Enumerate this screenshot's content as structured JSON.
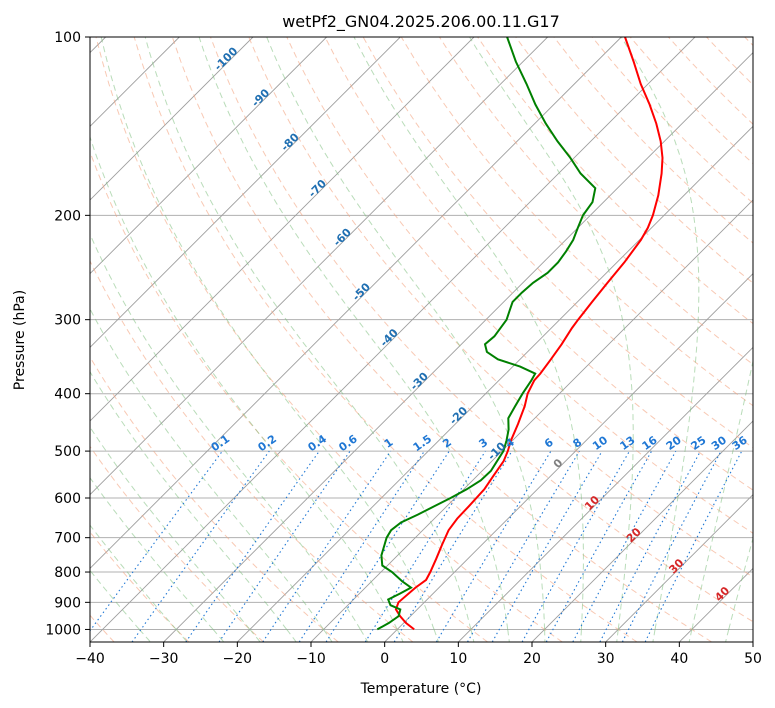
{
  "chart_data": {
    "type": "skew-t",
    "title": "wetPf2_GN04.2025.206.00.11.G17",
    "xlabel": "Temperature (°C)",
    "ylabel": "Pressure (hPa)",
    "xlim": [
      -40,
      50
    ],
    "ylim": [
      1050,
      100
    ],
    "x_ticks": [
      -40,
      -30,
      -20,
      -10,
      0,
      10,
      20,
      30,
      40,
      50
    ],
    "y_ticks": [
      100,
      200,
      300,
      400,
      500,
      600,
      700,
      800,
      900,
      1000
    ],
    "grid": true,
    "colors": {
      "temperature": "#ff0000",
      "dewpoint": "#008000",
      "isotherm": "#9e9e9e",
      "dry_adiabat": "#f4a582",
      "moist_adiabat": "#7fbf7f",
      "mixing_ratio": "#1f77d4",
      "isotherm_label": "#1f6fb2",
      "warm_label": "#d62728",
      "zero_label": "#808080",
      "grid": "#b0b0b0"
    },
    "series": [
      {
        "name": "temperature",
        "points": [
          [
            1000,
            2.3
          ],
          [
            975,
            0.3
          ],
          [
            950,
            -1.4
          ],
          [
            925,
            -2.9
          ],
          [
            900,
            -3.5
          ],
          [
            850,
            -3.2
          ],
          [
            825,
            -2.8
          ],
          [
            800,
            -3.3
          ],
          [
            760,
            -4.3
          ],
          [
            720,
            -5.4
          ],
          [
            680,
            -6.5
          ],
          [
            650,
            -6.9
          ],
          [
            620,
            -7.0
          ],
          [
            580,
            -7.2
          ],
          [
            550,
            -7.8
          ],
          [
            520,
            -8.4
          ],
          [
            500,
            -9.2
          ],
          [
            480,
            -10.2
          ],
          [
            450,
            -11.5
          ],
          [
            420,
            -13.0
          ],
          [
            400,
            -14.3
          ],
          [
            380,
            -15.2
          ],
          [
            370,
            -15.3
          ],
          [
            350,
            -15.8
          ],
          [
            330,
            -16.4
          ],
          [
            310,
            -17.2
          ],
          [
            300,
            -17.5
          ],
          [
            280,
            -18.0
          ],
          [
            260,
            -18.5
          ],
          [
            240,
            -19.0
          ],
          [
            220,
            -19.8
          ],
          [
            210,
            -20.5
          ],
          [
            200,
            -21.5
          ],
          [
            185,
            -23.5
          ],
          [
            170,
            -26.0
          ],
          [
            160,
            -28.0
          ],
          [
            150,
            -30.5
          ],
          [
            140,
            -33.5
          ],
          [
            130,
            -37.0
          ],
          [
            120,
            -41.0
          ],
          [
            110,
            -45.0
          ],
          [
            100,
            -49.5
          ]
        ]
      },
      {
        "name": "dewpoint",
        "points": [
          [
            1000,
            -2.7
          ],
          [
            975,
            -2.0
          ],
          [
            950,
            -1.6
          ],
          [
            925,
            -2.3
          ],
          [
            910,
            -4.2
          ],
          [
            890,
            -5.3
          ],
          [
            870,
            -4.5
          ],
          [
            850,
            -3.8
          ],
          [
            830,
            -5.8
          ],
          [
            800,
            -8.5
          ],
          [
            780,
            -10.7
          ],
          [
            750,
            -12.2
          ],
          [
            720,
            -13.2
          ],
          [
            700,
            -13.9
          ],
          [
            680,
            -14.3
          ],
          [
            660,
            -14.0
          ],
          [
            640,
            -12.8
          ],
          [
            620,
            -11.7
          ],
          [
            600,
            -10.6
          ],
          [
            580,
            -9.6
          ],
          [
            560,
            -8.9
          ],
          [
            540,
            -8.8
          ],
          [
            520,
            -9.3
          ],
          [
            500,
            -9.8
          ],
          [
            480,
            -10.8
          ],
          [
            460,
            -12.0
          ],
          [
            440,
            -13.6
          ],
          [
            420,
            -14.3
          ],
          [
            400,
            -15.0
          ],
          [
            380,
            -15.6
          ],
          [
            370,
            -16.0
          ],
          [
            360,
            -19.0
          ],
          [
            350,
            -23.0
          ],
          [
            340,
            -25.5
          ],
          [
            330,
            -26.8
          ],
          [
            320,
            -26.6
          ],
          [
            300,
            -27.2
          ],
          [
            290,
            -28.0
          ],
          [
            280,
            -28.8
          ],
          [
            270,
            -28.8
          ],
          [
            260,
            -28.6
          ],
          [
            250,
            -28.0
          ],
          [
            240,
            -28.0
          ],
          [
            230,
            -28.4
          ],
          [
            220,
            -29.0
          ],
          [
            210,
            -30.0
          ],
          [
            200,
            -31.0
          ],
          [
            190,
            -31.5
          ],
          [
            180,
            -33.0
          ],
          [
            170,
            -37.0
          ],
          [
            160,
            -40.5
          ],
          [
            150,
            -44.5
          ],
          [
            140,
            -48.5
          ],
          [
            130,
            -52.5
          ],
          [
            120,
            -56.5
          ],
          [
            110,
            -61.0
          ],
          [
            100,
            -65.5
          ]
        ]
      }
    ],
    "isotherm_labels": [
      "-100",
      "-90",
      "-80",
      "-70",
      "-60",
      "-50",
      "-40",
      "-30",
      "-20",
      "-10",
      "0",
      "10",
      "20",
      "30",
      "40"
    ],
    "mixing_ratio_labels": [
      "0.1",
      "0.2",
      "0.4",
      "0.6",
      "1",
      "1.5",
      "2",
      "3",
      "4",
      "6",
      "8",
      "10",
      "13",
      "16",
      "20",
      "25",
      "30",
      "36"
    ],
    "mixing_ratio_values": [
      0.1,
      0.2,
      0.4,
      0.6,
      1,
      1.5,
      2,
      3,
      4,
      6,
      8,
      10,
      13,
      16,
      20,
      25,
      30,
      36
    ],
    "mixing_ratio_label_pressure": 500
  }
}
